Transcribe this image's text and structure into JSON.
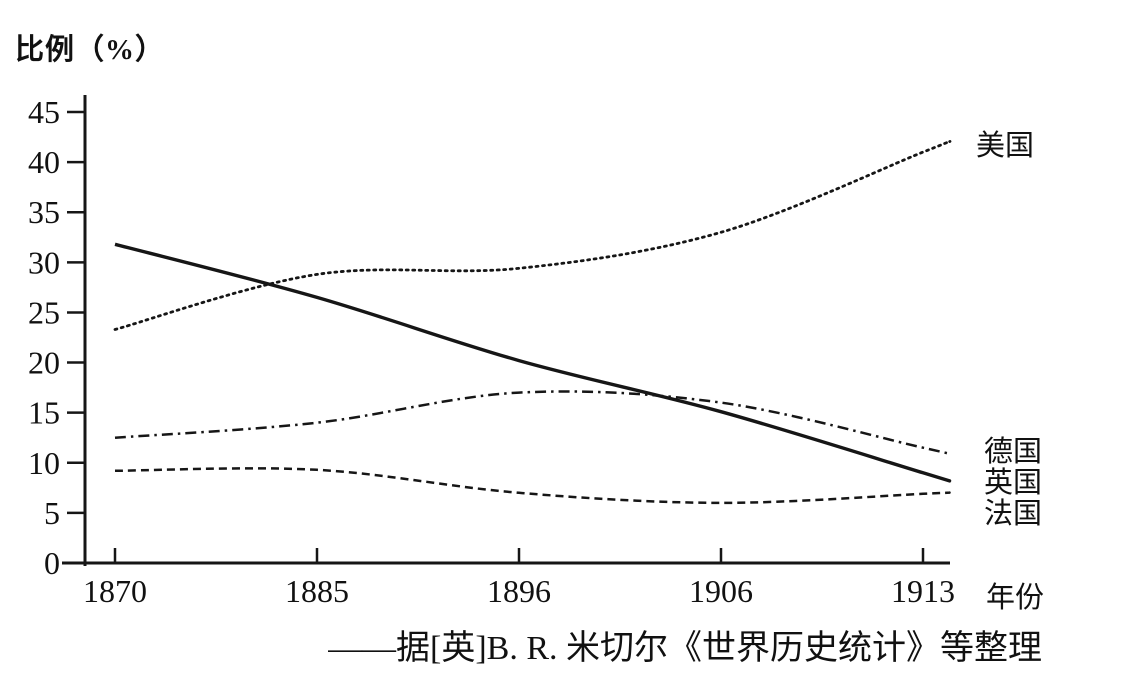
{
  "page": {
    "background": "#ffffff",
    "ink_color": "#161616"
  },
  "chart_data": {
    "type": "line",
    "title": "",
    "ylabel": "比例（%）",
    "xlabel": "年份",
    "categories": [
      "1870",
      "1885",
      "1896",
      "1906",
      "1913"
    ],
    "y_ticks": [
      0,
      5,
      10,
      15,
      20,
      25,
      30,
      35,
      40,
      45
    ],
    "ylim": [
      0,
      45
    ],
    "grid": false,
    "legend_position": "line-end-labels",
    "series": [
      {
        "name": "美国",
        "style": "dotted",
        "values": [
          23.3,
          28.8,
          29.4,
          33.0,
          41.0
        ]
      },
      {
        "name": "英国",
        "style": "solid",
        "values": [
          31.8,
          26.5,
          20.2,
          15.1,
          9.0
        ]
      },
      {
        "name": "德国",
        "style": "dashdot",
        "values": [
          12.5,
          14.0,
          17.0,
          16.0,
          11.5
        ]
      },
      {
        "name": "法国",
        "style": "dashed",
        "values": [
          9.2,
          9.3,
          7.0,
          6.0,
          6.9
        ]
      }
    ]
  },
  "caption": "——据[英]B. R. 米切尔《世界历史统计》等整理"
}
